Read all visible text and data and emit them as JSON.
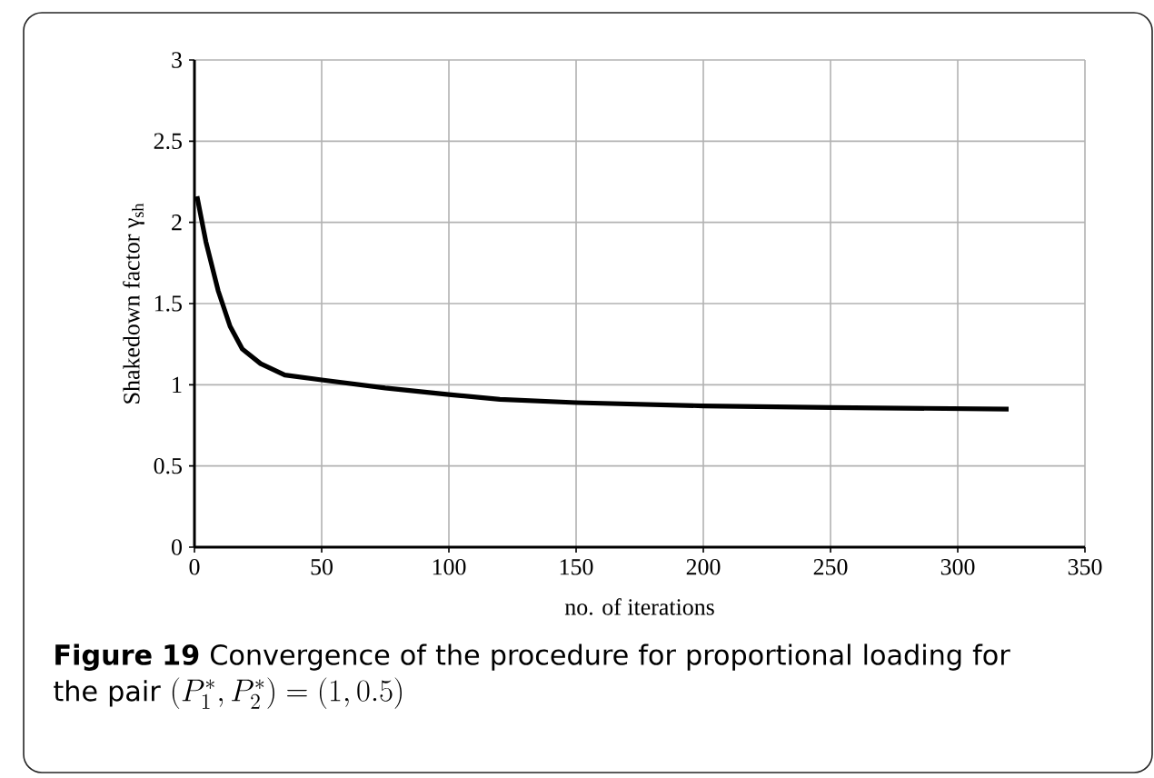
{
  "chart_data": {
    "type": "line",
    "xlabel": "no. of iterations",
    "ylabel": "Shakedown factor γ$_{sh}$",
    "annotations": [
      "**Figure 19**  Convergence of the procedure for proportional loading for the pair",
      "(P_1^*,P_2^*) = (1,0.5)"
    ],
    "series": [
      {
        "color": "#000000",
        "x": [
          1,
          4.5,
          9.3,
          14,
          18.8,
          26,
          35.5,
          50,
          75,
          100,
          120,
          150,
          200,
          250,
          320
        ],
        "values": [
          2.16,
          1.88,
          1.58,
          1.36,
          1.22,
          1.13,
          1.06,
          1.03,
          0.98,
          0.94,
          0.91,
          0.89,
          0.87,
          0.86,
          0.85
        ]
      }
    ],
    "xlim": [
      0,
      350
    ],
    "xticks": [
      0,
      50,
      100,
      150,
      200,
      250,
      300,
      350
    ],
    "ylim": [
      0,
      3
    ],
    "yticks": [
      0,
      0.5,
      1,
      1.5,
      2,
      2.5,
      3
    ],
    "grid": true,
    "marker": "none",
    "line_style": "solid"
  }
}
